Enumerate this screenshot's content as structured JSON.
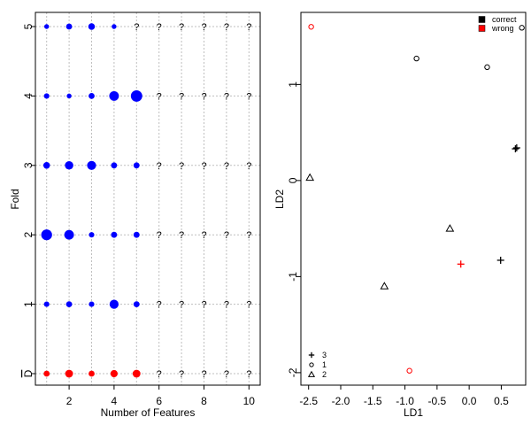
{
  "chart_data": [
    {
      "type": "scatter",
      "title": "",
      "xlabel": "Number of Features",
      "ylabel": "Fold",
      "xlim": [
        0.5,
        10.5
      ],
      "x_ticks": [
        "2",
        "4",
        "6",
        "8",
        "10"
      ],
      "y_ticks": [
        "D",
        "1",
        "2",
        "3",
        "4",
        "5"
      ],
      "grid": true,
      "unknown_marker": "?",
      "colors": {
        "folds": "#0000ff",
        "overall": "#ff0000"
      },
      "rows": [
        {
          "label": "D",
          "color": "#ff0000",
          "sizes": [
            1.0,
            1.3,
            1.0,
            1.2,
            1.3
          ]
        },
        {
          "label": "1",
          "color": "#0000ff",
          "sizes": [
            0.9,
            1.0,
            0.9,
            1.5,
            1.0
          ]
        },
        {
          "label": "2",
          "color": "#0000ff",
          "sizes": [
            1.8,
            1.6,
            0.9,
            1.0,
            1.0
          ]
        },
        {
          "label": "3",
          "color": "#0000ff",
          "sizes": [
            1.1,
            1.4,
            1.5,
            1.0,
            1.0
          ]
        },
        {
          "label": "4",
          "color": "#0000ff",
          "sizes": [
            0.9,
            0.8,
            1.0,
            1.6,
            1.9
          ]
        },
        {
          "label": "5",
          "color": "#0000ff",
          "sizes": [
            0.8,
            1.0,
            1.1,
            0.8
          ]
        }
      ]
    },
    {
      "type": "scatter",
      "title": "",
      "xlabel": "LD1",
      "ylabel": "LD2",
      "xlim": [
        -2.62,
        0.88
      ],
      "ylim": [
        -2.13,
        1.75
      ],
      "x_ticks": [
        "-2.5",
        "-2.0",
        "-1.5",
        "-1.0",
        "-0.5",
        "0.0",
        "0.5"
      ],
      "y_ticks": [
        "-2",
        "-1",
        "0",
        "1"
      ],
      "legend_class": {
        "position": "bottom-left",
        "items": [
          {
            "symbol": "plus",
            "label": "3"
          },
          {
            "symbol": "circle",
            "label": "1"
          },
          {
            "symbol": "triangle",
            "label": "2"
          }
        ]
      },
      "legend_outcome": {
        "position": "top-right",
        "items": [
          {
            "label": "correct",
            "color": "#000000"
          },
          {
            "label": "wrong",
            "color": "#ff0000"
          }
        ]
      },
      "points": [
        {
          "x": 0.72,
          "y": 0.33,
          "class": "3",
          "correct": true
        },
        {
          "x": 0.74,
          "y": 0.34,
          "class": "3",
          "correct": true
        },
        {
          "x": 0.49,
          "y": -0.83,
          "class": "3",
          "correct": true
        },
        {
          "x": -0.13,
          "y": -0.87,
          "class": "3",
          "correct": false
        },
        {
          "x": -0.82,
          "y": 1.27,
          "class": "1",
          "correct": true
        },
        {
          "x": 0.28,
          "y": 1.18,
          "class": "1",
          "correct": true
        },
        {
          "x": 0.82,
          "y": 1.59,
          "class": "1",
          "correct": true
        },
        {
          "x": -2.46,
          "y": 1.6,
          "class": "1",
          "correct": false
        },
        {
          "x": -0.93,
          "y": -1.98,
          "class": "1",
          "correct": false
        },
        {
          "x": -2.48,
          "y": 0.03,
          "class": "2",
          "correct": true
        },
        {
          "x": -0.3,
          "y": -0.5,
          "class": "2",
          "correct": true
        },
        {
          "x": -1.32,
          "y": -1.1,
          "class": "2",
          "correct": true
        }
      ]
    }
  ]
}
